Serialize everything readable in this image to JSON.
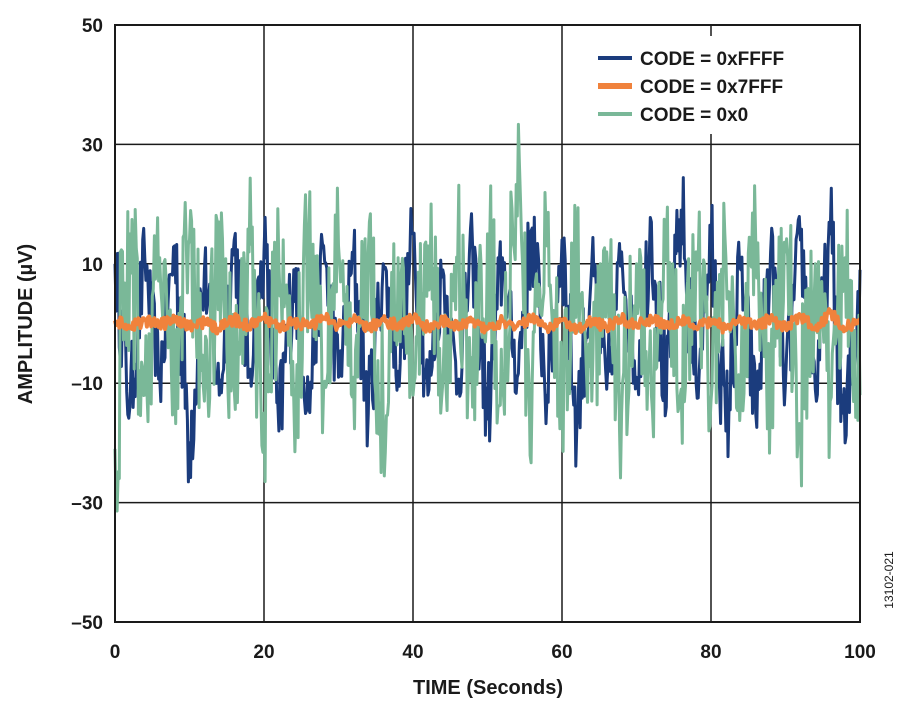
{
  "chart_data": {
    "type": "line",
    "xlabel": "TIME (Seconds)",
    "ylabel": "AMPLITUDE (µV)",
    "xlim": [
      0,
      100
    ],
    "ylim": [
      -50,
      50
    ],
    "xticks": [
      0,
      20,
      40,
      60,
      80,
      100
    ],
    "yticks": [
      -50,
      -30,
      -10,
      10,
      30,
      50
    ],
    "xtick_labels": [
      "0",
      "20",
      "40",
      "60",
      "80",
      "100"
    ],
    "ytick_labels": [
      "–50",
      "–30",
      "–10",
      "10",
      "30",
      "50"
    ],
    "grid": true,
    "legend_position": "top-right",
    "figure_id": "13102-021",
    "series": [
      {
        "name": "CODE = 0xFFFF",
        "color": "#1b3c7d",
        "x": [
          0,
          2,
          4,
          6,
          8,
          10,
          12,
          14,
          16,
          18,
          20,
          22,
          24,
          26,
          28,
          30,
          32,
          34,
          36,
          38,
          40,
          42,
          44,
          46,
          48,
          50,
          52,
          54,
          56,
          58,
          60,
          62,
          64,
          66,
          68,
          70,
          72,
          74,
          76,
          78,
          80,
          82,
          84,
          86,
          88,
          90,
          92,
          94,
          96,
          98,
          100
        ],
        "values": [
          10,
          -14,
          11,
          -9,
          13,
          -20,
          9,
          -12,
          14,
          -8,
          12,
          -18,
          9,
          -14,
          13,
          -9,
          11,
          -15,
          10,
          -8,
          15,
          -12,
          9,
          -10,
          13,
          -16,
          11,
          -9,
          16,
          -12,
          14,
          -17,
          10,
          -11,
          12,
          -9,
          17,
          -14,
          19,
          -10,
          13,
          -18,
          9,
          -15,
          12,
          -10,
          14,
          -11,
          15,
          -20,
          9
        ]
      },
      {
        "name": "CODE = 0x7FFF",
        "color": "#f0823c",
        "x": [
          0,
          2,
          4,
          6,
          8,
          10,
          12,
          14,
          16,
          18,
          20,
          22,
          24,
          26,
          28,
          30,
          32,
          34,
          36,
          38,
          40,
          42,
          44,
          46,
          48,
          50,
          52,
          54,
          56,
          58,
          60,
          62,
          64,
          66,
          68,
          70,
          72,
          74,
          76,
          78,
          80,
          82,
          84,
          86,
          88,
          90,
          92,
          94,
          96,
          98,
          100
        ],
        "values": [
          0.5,
          -0.8,
          0.6,
          -0.4,
          0.9,
          -0.6,
          0.3,
          -0.9,
          0.7,
          -0.5,
          0.8,
          -0.7,
          0.4,
          -0.6,
          1.0,
          -0.4,
          0.5,
          -0.8,
          0.6,
          -0.3,
          0.9,
          -0.7,
          0.4,
          -0.5,
          0.7,
          -0.9,
          0.5,
          -0.4,
          0.8,
          -0.6,
          0.6,
          -0.8,
          0.3,
          -0.5,
          0.7,
          -0.4,
          0.9,
          -0.6,
          0.5,
          -0.7,
          0.6,
          -0.9,
          0.4,
          -0.5,
          0.8,
          -0.6,
          1.4,
          -1.0,
          1.8,
          -0.8,
          0.6
        ]
      },
      {
        "name": "CODE = 0x0",
        "color": "#7ab898",
        "x": [
          0,
          2,
          4,
          6,
          8,
          10,
          12,
          14,
          16,
          18,
          20,
          22,
          24,
          26,
          28,
          30,
          32,
          34,
          36,
          38,
          40,
          42,
          44,
          46,
          48,
          50,
          52,
          54,
          56,
          58,
          60,
          62,
          64,
          66,
          68,
          70,
          72,
          74,
          76,
          78,
          80,
          82,
          84,
          86,
          88,
          90,
          92,
          94,
          96,
          98,
          100
        ],
        "values": [
          -21,
          15,
          -12,
          11,
          -10,
          14,
          -13,
          17,
          -11,
          12,
          -15,
          10,
          -13,
          14,
          -11,
          13,
          -9,
          12,
          -16,
          11,
          -12,
          13,
          -10,
          11,
          -14,
          15,
          -12,
          18,
          -10,
          13,
          -11,
          14,
          -13,
          12,
          -15,
          10,
          -12,
          13,
          -11,
          12,
          -13,
          11,
          -12,
          14,
          -10,
          12,
          -17,
          10,
          -13,
          11,
          -12
        ]
      }
    ]
  }
}
